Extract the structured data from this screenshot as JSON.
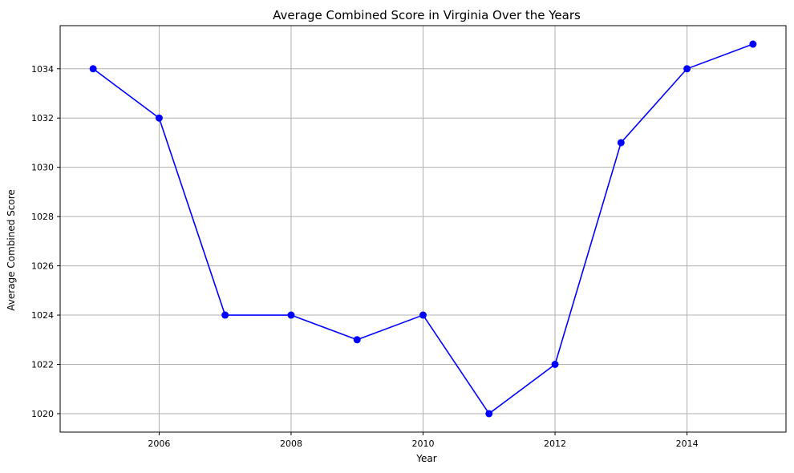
{
  "chart_data": {
    "type": "line",
    "title": "Average Combined Score in Virginia Over the Years",
    "xlabel": "Year",
    "ylabel": "Average Combined Score",
    "x": [
      2005,
      2006,
      2007,
      2008,
      2009,
      2010,
      2011,
      2012,
      2013,
      2014,
      2015
    ],
    "series": [
      {
        "values": [
          1034,
          1032,
          1024,
          1024,
          1023,
          1024,
          1020,
          1022,
          1031,
          1034,
          1035
        ],
        "color": "#0000ff",
        "marker": "circle"
      }
    ],
    "xlim": [
      2004.5,
      2015.5
    ],
    "ylim": [
      1019.25,
      1035.75
    ],
    "xticks": [
      2006,
      2008,
      2010,
      2012,
      2014
    ],
    "yticks": [
      1020,
      1022,
      1024,
      1026,
      1028,
      1030,
      1032,
      1034
    ],
    "grid": true
  }
}
